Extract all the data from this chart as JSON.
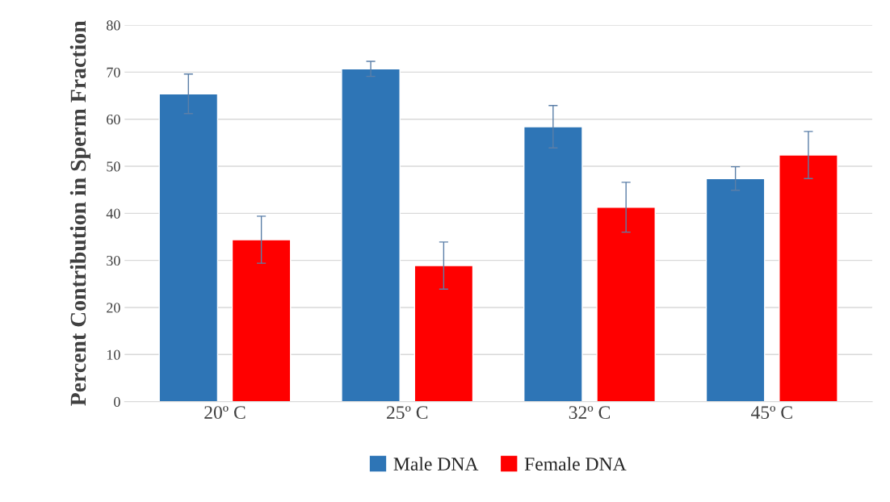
{
  "chart_data": {
    "type": "bar",
    "ylabel": "Percent Contribution in Sperm Fraction",
    "categories": [
      "20º C",
      "25º C",
      "32º C",
      "45º C"
    ],
    "series": [
      {
        "name": "Male DNA",
        "color": "#2e75b6",
        "values": [
          65.4,
          70.7,
          58.4,
          47.4
        ],
        "errors": [
          4.2,
          1.6,
          4.5,
          2.5
        ]
      },
      {
        "name": "Female DNA",
        "color": "#ff0000",
        "values": [
          34.4,
          28.9,
          41.3,
          52.4
        ],
        "errors": [
          5,
          5,
          5.3,
          5
        ]
      }
    ],
    "ylim": [
      0,
      80
    ],
    "yticks": [
      0,
      10,
      20,
      30,
      40,
      50,
      60,
      70,
      80
    ],
    "grid": "y",
    "legend": "bottom"
  }
}
